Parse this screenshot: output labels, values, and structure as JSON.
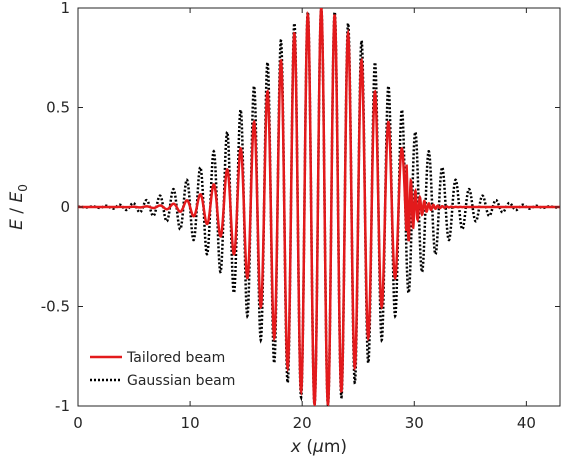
{
  "chart_data": {
    "type": "line",
    "xlabel": {
      "var": "x",
      "unit_open": " (",
      "unit_sym": "μ",
      "unit_rest": "m)"
    },
    "ylabel": {
      "var": "E",
      "sep": " / ",
      "den": "E",
      "den_sub": "0"
    },
    "xlim": [
      0,
      43
    ],
    "ylim": [
      -1,
      1
    ],
    "xticks": [
      0,
      10,
      20,
      30,
      40
    ],
    "xtick_labels": [
      "0",
      "10",
      "20",
      "30",
      "40"
    ],
    "yticks": [
      -1,
      -0.5,
      0,
      0.5,
      1
    ],
    "ytick_labels": [
      "-1",
      "-0.5",
      "0",
      "0.5",
      "1"
    ],
    "grid": false,
    "legend": "bottom-left",
    "series": [
      {
        "name": "Tailored beam",
        "color": "#e31a1c",
        "style": "solid",
        "model": {
          "center": 21.7,
          "width": 6.5,
          "period": 1.2,
          "phase": 0.0,
          "cutoff": 29.3,
          "tail_decay": 0.8,
          "tail_period": 0.4,
          "tail_amp": 0.22
        }
      },
      {
        "name": "Gaussian beam",
        "color": "#000000",
        "style": "dotted",
        "model": {
          "center": 21.7,
          "width": 8.5,
          "period": 1.2,
          "phase": 0.0
        }
      }
    ]
  }
}
